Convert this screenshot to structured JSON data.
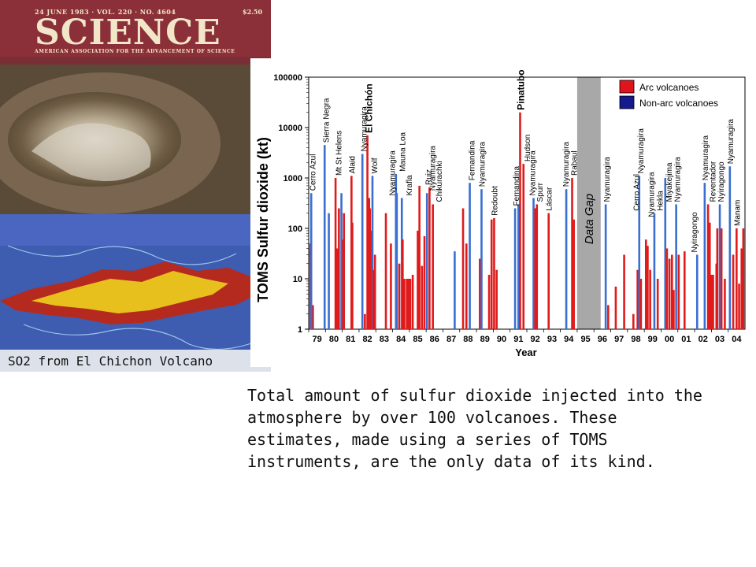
{
  "cover": {
    "issue_line": "24 JUNE 1983 · VOL. 220 · NO. 4604",
    "price": "$2.50",
    "title": "SCIENCE",
    "subtitle": "AMERICAN ASSOCIATION FOR THE ADVANCEMENT OF SCIENCE",
    "caption": "SO2 from El Chichon Volcano"
  },
  "description": "Total amount of sulfur dioxide injected into the atmosphere by over 100 volcanoes. These estimates, made using  a series of TOMS instruments, are the only data of its kind.",
  "chart_data": {
    "type": "bar",
    "ylabel": "TOMS Sulfur dioxide (kt)",
    "xlabel": "Year",
    "y_scale": "log",
    "ylim": [
      1,
      100000
    ],
    "y_ticks": [
      "1",
      "10",
      "100",
      "1000",
      "10000",
      "100000"
    ],
    "x_ticks": [
      "79",
      "80",
      "81",
      "82",
      "83",
      "84",
      "85",
      "86",
      "87",
      "88",
      "89",
      "90",
      "91",
      "92",
      "93",
      "94",
      "95",
      "96",
      "97",
      "98",
      "99",
      "00",
      "01",
      "02",
      "03",
      "04"
    ],
    "x_range_years": [
      1979.0,
      2005.0
    ],
    "gap": {
      "from": 1995.0,
      "to": 1996.4,
      "label": "Data Gap",
      "color": "#a8a8a8"
    },
    "colors": {
      "arc": "#e01b1b",
      "nonarc": "#3a6fcf"
    },
    "legend": {
      "arc": "Arc volcanoes",
      "nonarc": "Non-arc volcanoes",
      "arc_color": "#e0141c",
      "nonarc_color": "#161a8c",
      "position": "top-right"
    },
    "bars": [
      {
        "x": 1979.1,
        "y": 50,
        "t": "a"
      },
      {
        "x": 1979.25,
        "y": 3,
        "t": "a"
      },
      {
        "x": 1979.15,
        "y": 500,
        "t": "n"
      },
      {
        "x": 1979.95,
        "y": 4500,
        "t": "n"
      },
      {
        "x": 1980.2,
        "y": 200,
        "t": "n"
      },
      {
        "x": 1980.6,
        "y": 1000,
        "t": "a"
      },
      {
        "x": 1980.7,
        "y": 40,
        "t": "a"
      },
      {
        "x": 1980.8,
        "y": 250,
        "t": "a"
      },
      {
        "x": 1980.95,
        "y": 500,
        "t": "n"
      },
      {
        "x": 1981.1,
        "y": 200,
        "t": "a"
      },
      {
        "x": 1981.05,
        "y": 60,
        "t": "a"
      },
      {
        "x": 1981.55,
        "y": 1100,
        "t": "a"
      },
      {
        "x": 1981.6,
        "y": 130,
        "t": "a"
      },
      {
        "x": 1982.2,
        "y": 3000,
        "t": "n"
      },
      {
        "x": 1982.35,
        "y": 2,
        "t": "a"
      },
      {
        "x": 1982.5,
        "y": 7000,
        "t": "a"
      },
      {
        "x": 1982.55,
        "y": 100,
        "t": "a"
      },
      {
        "x": 1982.6,
        "y": 400,
        "t": "a"
      },
      {
        "x": 1982.65,
        "y": 250,
        "t": "a"
      },
      {
        "x": 1982.72,
        "y": 90,
        "t": "a"
      },
      {
        "x": 1982.8,
        "y": 1100,
        "t": "n"
      },
      {
        "x": 1982.85,
        "y": 15,
        "t": "a"
      },
      {
        "x": 1982.95,
        "y": 30,
        "t": "a"
      },
      {
        "x": 1983.6,
        "y": 200,
        "t": "a"
      },
      {
        "x": 1983.9,
        "y": 50,
        "t": "a"
      },
      {
        "x": 1984.2,
        "y": 1200,
        "t": "n"
      },
      {
        "x": 1984.25,
        "y": 500,
        "t": "n"
      },
      {
        "x": 1984.4,
        "y": 20,
        "t": "a"
      },
      {
        "x": 1984.55,
        "y": 400,
        "t": "n"
      },
      {
        "x": 1984.6,
        "y": 60,
        "t": "a"
      },
      {
        "x": 1984.7,
        "y": 10,
        "t": "a"
      },
      {
        "x": 1984.85,
        "y": 10,
        "t": "a"
      },
      {
        "x": 1984.95,
        "y": 10,
        "t": "a"
      },
      {
        "x": 1985.05,
        "y": 10,
        "t": "a"
      },
      {
        "x": 1985.2,
        "y": 12,
        "t": "a"
      },
      {
        "x": 1985.5,
        "y": 90,
        "t": "a"
      },
      {
        "x": 1985.6,
        "y": 700,
        "t": "a"
      },
      {
        "x": 1985.75,
        "y": 18,
        "t": "a"
      },
      {
        "x": 1985.9,
        "y": 70,
        "t": "a"
      },
      {
        "x": 1986.05,
        "y": 500,
        "t": "n"
      },
      {
        "x": 1986.2,
        "y": 650,
        "t": "a"
      },
      {
        "x": 1986.4,
        "y": 300,
        "t": "a"
      },
      {
        "x": 1987.7,
        "y": 35,
        "t": "n"
      },
      {
        "x": 1988.2,
        "y": 250,
        "t": "a"
      },
      {
        "x": 1988.4,
        "y": 50,
        "t": "a"
      },
      {
        "x": 1988.6,
        "y": 800,
        "t": "n"
      },
      {
        "x": 1989.2,
        "y": 25,
        "t": "a"
      },
      {
        "x": 1989.3,
        "y": 600,
        "t": "n"
      },
      {
        "x": 1989.75,
        "y": 12,
        "t": "a"
      },
      {
        "x": 1989.9,
        "y": 150,
        "t": "a"
      },
      {
        "x": 1990.05,
        "y": 160,
        "t": "a"
      },
      {
        "x": 1990.2,
        "y": 15,
        "t": "a"
      },
      {
        "x": 1991.3,
        "y": 250,
        "t": "n"
      },
      {
        "x": 1991.5,
        "y": 300,
        "t": "n"
      },
      {
        "x": 1991.6,
        "y": 20000,
        "t": "a"
      },
      {
        "x": 1991.8,
        "y": 1900,
        "t": "a"
      },
      {
        "x": 1992.4,
        "y": 400,
        "t": "n"
      },
      {
        "x": 1992.5,
        "y": 250,
        "t": "a"
      },
      {
        "x": 1992.6,
        "y": 300,
        "t": "a"
      },
      {
        "x": 1993.3,
        "y": 200,
        "t": "a"
      },
      {
        "x": 1994.35,
        "y": 600,
        "t": "n"
      },
      {
        "x": 1994.7,
        "y": 1000,
        "t": "a"
      },
      {
        "x": 1994.8,
        "y": 150,
        "t": "a"
      },
      {
        "x": 1996.7,
        "y": 300,
        "t": "n"
      },
      {
        "x": 1996.85,
        "y": 3,
        "t": "a"
      },
      {
        "x": 1997.3,
        "y": 7,
        "t": "a"
      },
      {
        "x": 1997.8,
        "y": 30,
        "t": "a"
      },
      {
        "x": 1998.35,
        "y": 2,
        "t": "a"
      },
      {
        "x": 1998.6,
        "y": 15,
        "t": "a"
      },
      {
        "x": 1998.7,
        "y": 1100,
        "t": "n"
      },
      {
        "x": 1998.8,
        "y": 10,
        "t": "a"
      },
      {
        "x": 1999.1,
        "y": 60,
        "t": "a"
      },
      {
        "x": 1999.2,
        "y": 45,
        "t": "a"
      },
      {
        "x": 1999.35,
        "y": 15,
        "t": "a"
      },
      {
        "x": 1999.6,
        "y": 200,
        "t": "n"
      },
      {
        "x": 1999.8,
        "y": 10,
        "t": "a"
      },
      {
        "x": 2000.25,
        "y": 1000,
        "t": "n"
      },
      {
        "x": 2000.35,
        "y": 40,
        "t": "a"
      },
      {
        "x": 2000.5,
        "y": 25,
        "t": "a"
      },
      {
        "x": 2000.65,
        "y": 30,
        "t": "a"
      },
      {
        "x": 2000.75,
        "y": 6,
        "t": "a"
      },
      {
        "x": 2000.9,
        "y": 300,
        "t": "n"
      },
      {
        "x": 2001.05,
        "y": 30,
        "t": "a"
      },
      {
        "x": 2001.4,
        "y": 35,
        "t": "a"
      },
      {
        "x": 2002.15,
        "y": 30,
        "t": "n"
      },
      {
        "x": 2002.6,
        "y": 800,
        "t": "n"
      },
      {
        "x": 2002.8,
        "y": 300,
        "t": "a"
      },
      {
        "x": 2002.9,
        "y": 130,
        "t": "a"
      },
      {
        "x": 2003.0,
        "y": 12,
        "t": "a"
      },
      {
        "x": 2003.1,
        "y": 12,
        "t": "a"
      },
      {
        "x": 2003.3,
        "y": 20,
        "t": "a"
      },
      {
        "x": 2003.35,
        "y": 100,
        "t": "a"
      },
      {
        "x": 2003.5,
        "y": 300,
        "t": "n"
      },
      {
        "x": 2003.6,
        "y": 100,
        "t": "a"
      },
      {
        "x": 2003.8,
        "y": 10,
        "t": "a"
      },
      {
        "x": 2004.1,
        "y": 1700,
        "t": "n"
      },
      {
        "x": 2004.3,
        "y": 30,
        "t": "a"
      },
      {
        "x": 2004.5,
        "y": 100,
        "t": "a"
      },
      {
        "x": 2004.65,
        "y": 8,
        "t": "a"
      },
      {
        "x": 2004.8,
        "y": 40,
        "t": "a"
      },
      {
        "x": 2004.9,
        "y": 100,
        "t": "a"
      }
    ],
    "labels": [
      {
        "x": 1979.2,
        "y": 500,
        "text": "Cerro Azul",
        "big": false
      },
      {
        "x": 1980.0,
        "y": 4500,
        "text": "Sierra Negra",
        "big": false
      },
      {
        "x": 1980.75,
        "y": 1000,
        "text": "Mt St Helens",
        "big": false
      },
      {
        "x": 1981.55,
        "y": 1100,
        "text": "Alaid",
        "big": false
      },
      {
        "x": 1982.25,
        "y": 3000,
        "text": "Nyamuragira",
        "big": false
      },
      {
        "x": 1982.6,
        "y": 7000,
        "text": "El Chichón",
        "big": true
      },
      {
        "x": 1982.9,
        "y": 1100,
        "text": "Wolf",
        "big": false
      },
      {
        "x": 1983.95,
        "y": 400,
        "text": "Nyamuragira",
        "big": false
      },
      {
        "x": 1984.55,
        "y": 1200,
        "text": "Mauna Loa",
        "big": false
      },
      {
        "x": 1984.95,
        "y": 400,
        "text": "Krafla",
        "big": false
      },
      {
        "x": 1986.1,
        "y": 650,
        "text": "Ruiz",
        "big": false
      },
      {
        "x": 1986.35,
        "y": 500,
        "text": "Nyamuragira",
        "big": false
      },
      {
        "x": 1986.75,
        "y": 300,
        "text": "Chikurachki",
        "big": false
      },
      {
        "x": 1988.7,
        "y": 800,
        "text": "Fernandina",
        "big": false
      },
      {
        "x": 1989.3,
        "y": 600,
        "text": "Nyamuragira",
        "big": false
      },
      {
        "x": 1990.05,
        "y": 160,
        "text": "Redoubt",
        "big": false
      },
      {
        "x": 1991.35,
        "y": 250,
        "text": "Fernandina",
        "big": false
      },
      {
        "x": 1991.65,
        "y": 20000,
        "text": "Pinatubo",
        "big": true
      },
      {
        "x": 1992.0,
        "y": 1900,
        "text": "Hudson",
        "big": false
      },
      {
        "x": 1992.3,
        "y": 400,
        "text": "Nyamuragira",
        "big": false
      },
      {
        "x": 1992.75,
        "y": 300,
        "text": "Spurr",
        "big": false
      },
      {
        "x": 1993.3,
        "y": 200,
        "text": "Láscar",
        "big": false
      },
      {
        "x": 1994.3,
        "y": 600,
        "text": "Nyamuragira",
        "big": false
      },
      {
        "x": 1994.8,
        "y": 1000,
        "text": "Rabaul",
        "big": false
      },
      {
        "x": 1996.75,
        "y": 300,
        "text": "Nyamuragira",
        "big": false
      },
      {
        "x": 1998.5,
        "y": 200,
        "text": "Cerro Azul",
        "big": false
      },
      {
        "x": 1998.75,
        "y": 1100,
        "text": "Nyamuragira",
        "big": false
      },
      {
        "x": 1999.4,
        "y": 150,
        "text": "Nyamuragira",
        "big": false
      },
      {
        "x": 1999.9,
        "y": 200,
        "text": "Hekla",
        "big": false
      },
      {
        "x": 2000.45,
        "y": 300,
        "text": "Miyakejima",
        "big": false
      },
      {
        "x": 2000.95,
        "y": 300,
        "text": "Nyamuragira",
        "big": false
      },
      {
        "x": 2001.95,
        "y": 30,
        "text": "Nyiragongo",
        "big": false
      },
      {
        "x": 2002.6,
        "y": 800,
        "text": "Nyamuragira",
        "big": false
      },
      {
        "x": 2003.05,
        "y": 300,
        "text": "Reventador",
        "big": false
      },
      {
        "x": 2003.55,
        "y": 300,
        "text": "Nyiragongo",
        "big": false
      },
      {
        "x": 2004.1,
        "y": 1700,
        "text": "Nyamuragira",
        "big": false
      },
      {
        "x": 2004.5,
        "y": 100,
        "text": "Manam",
        "big": false
      }
    ]
  }
}
